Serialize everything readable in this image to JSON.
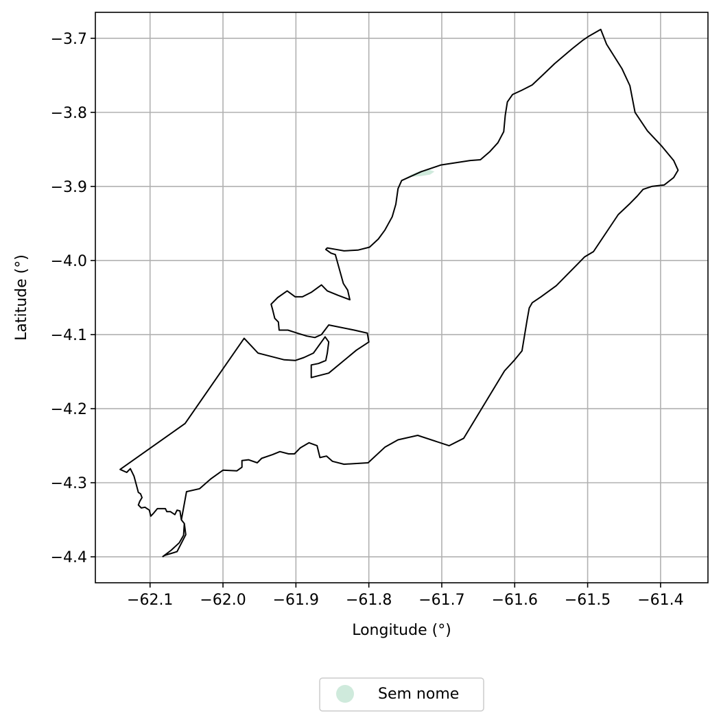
{
  "chart_data": {
    "type": "map",
    "xlabel": "Longitude (°)",
    "ylabel": "Latitude (°)",
    "xlim": [
      -62.175,
      -61.335
    ],
    "ylim": [
      -4.435,
      -3.665
    ],
    "x_ticks": [
      -62.1,
      -62.0,
      -61.9,
      -61.8,
      -61.7,
      -61.6,
      -61.5,
      -61.4
    ],
    "x_tick_labels": [
      "−62.1",
      "−62.0",
      "−61.9",
      "−61.8",
      "−61.7",
      "−61.6",
      "−61.5",
      "−61.4"
    ],
    "y_ticks": [
      -3.7,
      -3.8,
      -3.9,
      -4.0,
      -4.1,
      -4.2,
      -4.3,
      -4.4
    ],
    "y_tick_labels": [
      "−3.7",
      "−3.8",
      "−3.9",
      "−4.0",
      "−4.1",
      "−4.2",
      "−4.3",
      "−4.4"
    ],
    "grid": true,
    "legend": {
      "placement": "bottom-center",
      "entries": [
        {
          "label": "Sem nome",
          "color": "#cfeadc",
          "marker": "circle"
        }
      ]
    },
    "boundary": {
      "stroke": "#000000",
      "points": [
        [
          -62.083,
          -4.4
        ],
        [
          -62.071,
          -4.391
        ],
        [
          -62.06,
          -4.381
        ],
        [
          -62.054,
          -4.371
        ],
        [
          -62.053,
          -4.355
        ],
        [
          -62.057,
          -4.35
        ],
        [
          -62.059,
          -4.338
        ],
        [
          -62.063,
          -4.337
        ],
        [
          -62.066,
          -4.343
        ],
        [
          -62.072,
          -4.339
        ],
        [
          -62.077,
          -4.339
        ],
        [
          -62.079,
          -4.335
        ],
        [
          -62.09,
          -4.335
        ],
        [
          -62.095,
          -4.341
        ],
        [
          -62.099,
          -4.345
        ],
        [
          -62.101,
          -4.337
        ],
        [
          -62.107,
          -4.333
        ],
        [
          -62.112,
          -4.334
        ],
        [
          -62.116,
          -4.33
        ],
        [
          -62.114,
          -4.325
        ],
        [
          -62.111,
          -4.32
        ],
        [
          -62.113,
          -4.315
        ],
        [
          -62.116,
          -4.313
        ],
        [
          -62.119,
          -4.302
        ],
        [
          -62.122,
          -4.291
        ],
        [
          -62.127,
          -4.281
        ],
        [
          -62.132,
          -4.286
        ],
        [
          -62.141,
          -4.282
        ],
        [
          -62.052,
          -4.22
        ],
        [
          -61.971,
          -4.105
        ],
        [
          -61.952,
          -4.125
        ],
        [
          -61.916,
          -4.134
        ],
        [
          -61.901,
          -4.135
        ],
        [
          -61.889,
          -4.131
        ],
        [
          -61.876,
          -4.125
        ],
        [
          -61.86,
          -4.103
        ],
        [
          -61.855,
          -4.11
        ],
        [
          -61.857,
          -4.125
        ],
        [
          -61.859,
          -4.135
        ],
        [
          -61.869,
          -4.139
        ],
        [
          -61.879,
          -4.141
        ],
        [
          -61.879,
          -4.154
        ],
        [
          -61.879,
          -4.158
        ],
        [
          -61.855,
          -4.152
        ],
        [
          -61.817,
          -4.121
        ],
        [
          -61.8,
          -4.11
        ],
        [
          -61.802,
          -4.098
        ],
        [
          -61.82,
          -4.094
        ],
        [
          -61.855,
          -4.087
        ],
        [
          -61.865,
          -4.1
        ],
        [
          -61.874,
          -4.104
        ],
        [
          -61.885,
          -4.102
        ],
        [
          -61.898,
          -4.098
        ],
        [
          -61.911,
          -4.094
        ],
        [
          -61.923,
          -4.094
        ],
        [
          -61.924,
          -4.083
        ],
        [
          -61.929,
          -4.078
        ],
        [
          -61.932,
          -4.066
        ],
        [
          -61.934,
          -4.059
        ],
        [
          -61.925,
          -4.05
        ],
        [
          -61.912,
          -4.041
        ],
        [
          -61.901,
          -4.049
        ],
        [
          -61.891,
          -4.049
        ],
        [
          -61.879,
          -4.043
        ],
        [
          -61.865,
          -4.033
        ],
        [
          -61.857,
          -4.041
        ],
        [
          -61.842,
          -4.047
        ],
        [
          -61.826,
          -4.053
        ],
        [
          -61.829,
          -4.04
        ],
        [
          -61.835,
          -4.031
        ],
        [
          -61.846,
          -3.992
        ],
        [
          -61.852,
          -3.99
        ],
        [
          -61.859,
          -3.985
        ],
        [
          -61.857,
          -3.983
        ],
        [
          -61.845,
          -3.985
        ],
        [
          -61.834,
          -3.987
        ],
        [
          -61.815,
          -3.986
        ],
        [
          -61.799,
          -3.982
        ],
        [
          -61.787,
          -3.971
        ],
        [
          -61.778,
          -3.959
        ],
        [
          -61.768,
          -3.941
        ],
        [
          -61.763,
          -3.924
        ],
        [
          -61.76,
          -3.903
        ],
        [
          -61.755,
          -3.892
        ],
        [
          -61.728,
          -3.88
        ],
        [
          -61.701,
          -3.871
        ],
        [
          -61.661,
          -3.865
        ],
        [
          -61.647,
          -3.864
        ],
        [
          -61.634,
          -3.853
        ],
        [
          -61.623,
          -3.841
        ],
        [
          -61.615,
          -3.826
        ],
        [
          -61.613,
          -3.804
        ],
        [
          -61.61,
          -3.786
        ],
        [
          -61.603,
          -3.776
        ],
        [
          -61.59,
          -3.77
        ],
        [
          -61.576,
          -3.763
        ],
        [
          -61.563,
          -3.751
        ],
        [
          -61.545,
          -3.734
        ],
        [
          -61.521,
          -3.714
        ],
        [
          -61.507,
          -3.703
        ],
        [
          -61.498,
          -3.697
        ],
        [
          -61.482,
          -3.688
        ],
        [
          -61.474,
          -3.708
        ],
        [
          -61.453,
          -3.741
        ],
        [
          -61.442,
          -3.764
        ],
        [
          -61.435,
          -3.8
        ],
        [
          -61.418,
          -3.825
        ],
        [
          -61.398,
          -3.846
        ],
        [
          -61.382,
          -3.865
        ],
        [
          -61.376,
          -3.878
        ],
        [
          -61.382,
          -3.888
        ],
        [
          -61.395,
          -3.898
        ],
        [
          -61.412,
          -3.9
        ],
        [
          -61.424,
          -3.904
        ],
        [
          -61.432,
          -3.913
        ],
        [
          -61.443,
          -3.924
        ],
        [
          -61.458,
          -3.938
        ],
        [
          -61.492,
          -3.988
        ],
        [
          -61.504,
          -3.995
        ],
        [
          -61.514,
          -4.005
        ],
        [
          -61.543,
          -4.034
        ],
        [
          -61.564,
          -4.049
        ],
        [
          -61.576,
          -4.057
        ],
        [
          -61.58,
          -4.064
        ],
        [
          -61.583,
          -4.08
        ],
        [
          -61.59,
          -4.122
        ],
        [
          -61.6,
          -4.134
        ],
        [
          -61.614,
          -4.149
        ],
        [
          -61.67,
          -4.24
        ],
        [
          -61.69,
          -4.25
        ],
        [
          -61.733,
          -4.236
        ],
        [
          -61.76,
          -4.242
        ],
        [
          -61.778,
          -4.252
        ],
        [
          -61.801,
          -4.273
        ],
        [
          -61.834,
          -4.275
        ],
        [
          -61.85,
          -4.271
        ],
        [
          -61.858,
          -4.264
        ],
        [
          -61.867,
          -4.266
        ],
        [
          -61.871,
          -4.25
        ],
        [
          -61.882,
          -4.246
        ],
        [
          -61.894,
          -4.253
        ],
        [
          -61.902,
          -4.261
        ],
        [
          -61.91,
          -4.261
        ],
        [
          -61.922,
          -4.258
        ],
        [
          -61.932,
          -4.262
        ],
        [
          -61.947,
          -4.267
        ],
        [
          -61.953,
          -4.273
        ],
        [
          -61.965,
          -4.269
        ],
        [
          -61.974,
          -4.27
        ],
        [
          -61.974,
          -4.279
        ],
        [
          -61.981,
          -4.284
        ],
        [
          -62.0,
          -4.283
        ],
        [
          -62.017,
          -4.295
        ],
        [
          -62.032,
          -4.308
        ],
        [
          -62.05,
          -4.312
        ],
        [
          -62.057,
          -4.35
        ],
        [
          -62.053,
          -4.355
        ],
        [
          -62.051,
          -4.37
        ],
        [
          -62.063,
          -4.393
        ],
        [
          -62.08,
          -4.398
        ],
        [
          -62.083,
          -4.4
        ]
      ]
    },
    "areas": [
      {
        "name": "Sem nome",
        "fill": "#cfeadc",
        "points": [
          [
            -61.752,
            -3.89
          ],
          [
            -61.742,
            -3.884
          ],
          [
            -61.73,
            -3.879
          ],
          [
            -61.718,
            -3.877
          ],
          [
            -61.71,
            -3.88
          ],
          [
            -61.716,
            -3.884
          ],
          [
            -61.728,
            -3.886
          ],
          [
            -61.742,
            -3.887
          ]
        ]
      }
    ]
  }
}
